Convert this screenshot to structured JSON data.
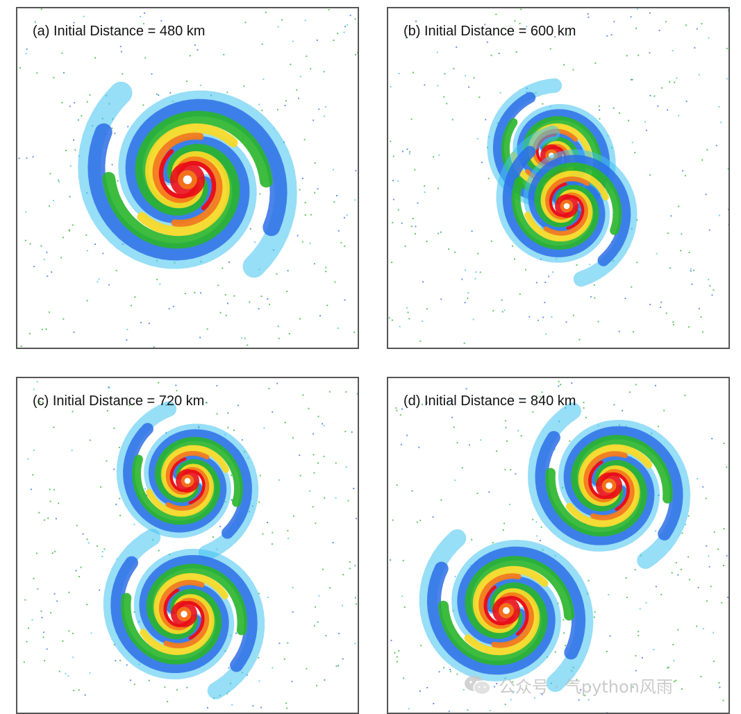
{
  "panels": [
    {
      "id": "a",
      "title": "(a) Initial Distance = 480 km"
    },
    {
      "id": "b",
      "title": "(b) Initial Distance = 600 km"
    },
    {
      "id": "c",
      "title": "(c) Initial Distance = 720 km"
    },
    {
      "id": "d",
      "title": "(d) Initial Distance = 840 km"
    }
  ],
  "watermark": {
    "text": "公众号 · 气python风雨",
    "icon": "wechat-icon"
  },
  "colors": {
    "red": "#e8101a",
    "orange": "#f47a1a",
    "yellow": "#f6d92a",
    "green": "#29b52a",
    "blue": "#2d6fe6",
    "cyan": "#42c3f0",
    "frame": "#555555"
  }
}
